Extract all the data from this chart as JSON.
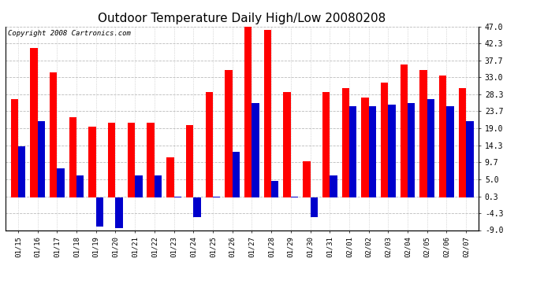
{
  "title": "Outdoor Temperature Daily High/Low 20080208",
  "copyright": "Copyright 2008 Cartronics.com",
  "dates": [
    "01/15",
    "01/16",
    "01/17",
    "01/18",
    "01/19",
    "01/20",
    "01/21",
    "01/22",
    "01/23",
    "01/24",
    "01/25",
    "01/26",
    "01/27",
    "01/28",
    "01/29",
    "01/30",
    "01/31",
    "02/01",
    "02/02",
    "02/03",
    "02/04",
    "02/05",
    "02/06",
    "02/07"
  ],
  "highs": [
    27.0,
    41.0,
    34.5,
    22.0,
    19.5,
    20.5,
    20.5,
    20.5,
    11.0,
    20.0,
    29.0,
    35.0,
    48.0,
    46.0,
    29.0,
    10.0,
    29.0,
    30.0,
    27.5,
    31.5,
    36.5,
    35.0,
    33.5,
    30.0
  ],
  "lows": [
    14.0,
    21.0,
    8.0,
    6.0,
    -8.0,
    -8.5,
    6.0,
    6.0,
    0.3,
    -5.5,
    0.3,
    12.5,
    26.0,
    4.5,
    0.3,
    -5.5,
    6.0,
    25.0,
    25.0,
    25.5,
    26.0,
    27.0,
    25.0,
    21.0
  ],
  "ylim": [
    -9.0,
    47.0
  ],
  "yticks": [
    -9.0,
    -4.3,
    0.3,
    5.0,
    9.7,
    14.3,
    19.0,
    23.7,
    28.3,
    33.0,
    37.7,
    42.3,
    47.0
  ],
  "high_color": "#ff0000",
  "low_color": "#0000cc",
  "bg_color": "#ffffff",
  "grid_color": "#aaaaaa",
  "bar_width": 0.38,
  "title_fontsize": 11,
  "copyright_fontsize": 6.5
}
